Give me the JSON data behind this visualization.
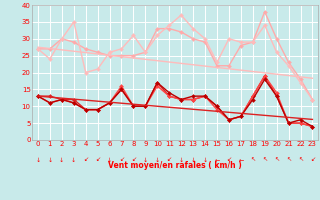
{
  "title": "",
  "xlabel": "Vent moyen/en rafales ( km/h )",
  "ylabel": "",
  "bg_color": "#c8eaea",
  "grid_color": "#ffffff",
  "xlim": [
    -0.5,
    23.5
  ],
  "ylim": [
    0,
    40
  ],
  "yticks": [
    0,
    5,
    10,
    15,
    20,
    25,
    30,
    35,
    40
  ],
  "xticks": [
    0,
    1,
    2,
    3,
    4,
    5,
    6,
    7,
    8,
    9,
    10,
    11,
    12,
    13,
    14,
    15,
    16,
    17,
    18,
    19,
    20,
    21,
    22,
    23
  ],
  "series": [
    {
      "name": "rafales_smooth",
      "color": "#ffaaaa",
      "linewidth": 1.0,
      "marker": "D",
      "markersize": 2.0,
      "linestyle": "-",
      "y": [
        27,
        27,
        30,
        29,
        27,
        26,
        25,
        25,
        25,
        26,
        33,
        33,
        32,
        30,
        29,
        22,
        22,
        28,
        29,
        38,
        30,
        23,
        18,
        12
      ]
    },
    {
      "name": "rafales_spiky",
      "color": "#ffbbbb",
      "linewidth": 1.0,
      "marker": "D",
      "markersize": 2.0,
      "linestyle": "-",
      "y": [
        27,
        24,
        30,
        35,
        20,
        21,
        26,
        27,
        31,
        26,
        31,
        34,
        37,
        33,
        30,
        23,
        30,
        29,
        29,
        34,
        26,
        22,
        17,
        12
      ]
    },
    {
      "name": "vent_series1",
      "color": "#dd2222",
      "linewidth": 1.0,
      "marker": "D",
      "markersize": 2.0,
      "linestyle": "-",
      "y": [
        13,
        13,
        12,
        12,
        9,
        9,
        11,
        15,
        10,
        10,
        17,
        13,
        12,
        12,
        13,
        10,
        6,
        7,
        13,
        19,
        13,
        5,
        5,
        4
      ]
    },
    {
      "name": "vent_series2",
      "color": "#ff4444",
      "linewidth": 1.0,
      "marker": "D",
      "markersize": 2.0,
      "linestyle": "-",
      "y": [
        13,
        11,
        12,
        11,
        9,
        9,
        11,
        16,
        10,
        10,
        16,
        13,
        12,
        12,
        13,
        9,
        6,
        7,
        13,
        19,
        14,
        5,
        5,
        4
      ]
    },
    {
      "name": "vent_series3",
      "color": "#bb0000",
      "linewidth": 1.0,
      "marker": "D",
      "markersize": 2.0,
      "linestyle": "-",
      "y": [
        13,
        11,
        12,
        11,
        9,
        9,
        11,
        15,
        10,
        10,
        17,
        14,
        12,
        13,
        13,
        10,
        6,
        7,
        12,
        18,
        13,
        5,
        6,
        4
      ]
    },
    {
      "name": "trend_rafales",
      "color": "#ffbbbb",
      "linewidth": 1.0,
      "marker": null,
      "linestyle": "-",
      "y": [
        27.5,
        27.1,
        26.7,
        26.3,
        25.9,
        25.5,
        25.1,
        24.7,
        24.3,
        23.9,
        23.5,
        23.1,
        22.7,
        22.3,
        21.9,
        21.5,
        21.1,
        20.7,
        20.3,
        19.9,
        19.5,
        19.1,
        18.7,
        18.3
      ]
    },
    {
      "name": "trend_vent",
      "color": "#dd2222",
      "linewidth": 1.0,
      "marker": null,
      "linestyle": "-",
      "y": [
        13.0,
        12.7,
        12.4,
        12.1,
        11.8,
        11.5,
        11.2,
        10.9,
        10.6,
        10.3,
        10.0,
        9.7,
        9.4,
        9.1,
        8.8,
        8.5,
        8.2,
        7.9,
        7.6,
        7.3,
        7.0,
        6.7,
        6.4,
        6.1
      ]
    }
  ],
  "wind_arrows": {
    "directions": [
      180,
      180,
      180,
      180,
      225,
      225,
      180,
      225,
      225,
      180,
      180,
      225,
      180,
      180,
      180,
      270,
      225,
      270,
      315,
      315,
      315,
      315,
      315,
      225
    ]
  }
}
